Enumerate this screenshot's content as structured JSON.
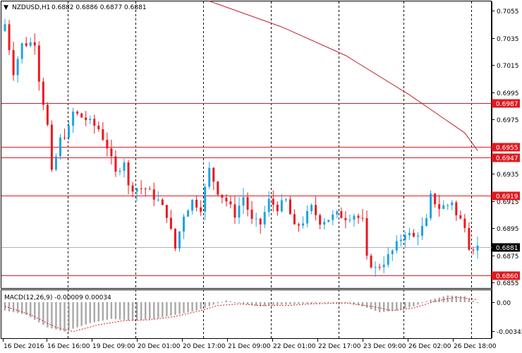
{
  "header": {
    "symbol": "NZDUSD,H1",
    "ohlc": "0.6882 0.6886 0.6877 0.6881"
  },
  "colors": {
    "bull": "#1fa3e0",
    "bear": "#e8191f",
    "level_line": "#e0191f",
    "current_line": "#a9b4c0",
    "ma_line": "#c0202f",
    "grid": "#000000",
    "macd_hist": "#a8a8a8",
    "macd_signal": "#e0191f"
  },
  "chart_data": {
    "type": "candlestick",
    "price_axis": {
      "ticks": [
        "0.7055",
        "0.7035",
        "0.7015",
        "0.6995",
        "0.6975",
        "0.6955",
        "0.6935",
        "0.6915",
        "0.6895",
        "0.6875",
        "0.6855"
      ],
      "range": [
        0.685,
        0.706
      ]
    },
    "time_axis": {
      "ticks": [
        "16 Dec 2016",
        "16 Dec 16:00",
        "19 Dec 09:00",
        "20 Dec 01:00",
        "20 Dec 17:00",
        "21 Dec 09:00",
        "22 Dec 01:00",
        "22 Dec 17:00",
        "23 Dec 09:00",
        "26 Dec 02:00",
        "26 Dec 18:00"
      ]
    },
    "horizontal_levels": [
      {
        "label": "0.6987",
        "value": 0.6987
      },
      {
        "label": "0.6955",
        "value": 0.6955
      },
      {
        "label": "0.6947",
        "value": 0.6947
      },
      {
        "label": "0.6919",
        "value": 0.6919
      },
      {
        "label": "0.6860",
        "value": 0.686
      }
    ],
    "current_price": {
      "label": "0.6881",
      "value": 0.6881
    },
    "moving_average": [
      {
        "bar": 48,
        "value": 0.7062
      },
      {
        "bar": 65,
        "value": 0.7043
      },
      {
        "bar": 80,
        "value": 0.7022
      },
      {
        "bar": 95,
        "value": 0.6993
      },
      {
        "bar": 108,
        "value": 0.6965
      },
      {
        "bar": 111,
        "value": 0.6952
      }
    ],
    "price_path": [
      [
        0,
        0.704
      ],
      [
        1,
        0.7045
      ],
      [
        3,
        0.701
      ],
      [
        5,
        0.703
      ],
      [
        8,
        0.7032
      ],
      [
        9,
        0.7005
      ],
      [
        11,
        0.697
      ],
      [
        12,
        0.6935
      ],
      [
        14,
        0.696
      ],
      [
        16,
        0.6968
      ],
      [
        17,
        0.698
      ],
      [
        20,
        0.6975
      ],
      [
        23,
        0.6968
      ],
      [
        25,
        0.6955
      ],
      [
        27,
        0.6935
      ],
      [
        29,
        0.6945
      ],
      [
        30,
        0.6925
      ],
      [
        34,
        0.6924
      ],
      [
        37,
        0.6915
      ],
      [
        39,
        0.6905
      ],
      [
        41,
        0.688
      ],
      [
        43,
        0.6905
      ],
      [
        45,
        0.6915
      ],
      [
        47,
        0.691
      ],
      [
        49,
        0.6938
      ],
      [
        51,
        0.6922
      ],
      [
        53,
        0.6915
      ],
      [
        55,
        0.6905
      ],
      [
        57,
        0.6918
      ],
      [
        59,
        0.69
      ],
      [
        61,
        0.6898
      ],
      [
        63,
        0.6915
      ],
      [
        65,
        0.691
      ],
      [
        67,
        0.6915
      ],
      [
        69,
        0.6895
      ],
      [
        71,
        0.69
      ],
      [
        73,
        0.691
      ],
      [
        75,
        0.69
      ],
      [
        77,
        0.6902
      ],
      [
        79,
        0.6905
      ],
      [
        81,
        0.6903
      ],
      [
        83,
        0.6905
      ],
      [
        85,
        0.69
      ],
      [
        86,
        0.6872
      ],
      [
        88,
        0.6865
      ],
      [
        90,
        0.687
      ],
      [
        92,
        0.6878
      ],
      [
        95,
        0.6892
      ],
      [
        97,
        0.6888
      ],
      [
        99,
        0.6895
      ],
      [
        100,
        0.69
      ],
      [
        101,
        0.6918
      ],
      [
        103,
        0.691
      ],
      [
        105,
        0.6912
      ],
      [
        106,
        0.6915
      ],
      [
        107,
        0.6904
      ],
      [
        109,
        0.6898
      ],
      [
        110,
        0.6882
      ],
      [
        111,
        0.6881
      ]
    ],
    "macd": {
      "label": "MACD(12,26,9) -0.00009 0.00034",
      "ticks": [
        "0.00",
        "-0.00345"
      ],
      "range": [
        -0.0042,
        0.0012
      ],
      "histogram_path": [
        [
          0,
          -0.001
        ],
        [
          5,
          -0.0015
        ],
        [
          10,
          -0.003
        ],
        [
          14,
          -0.0035
        ],
        [
          20,
          -0.0025
        ],
        [
          25,
          -0.002
        ],
        [
          30,
          -0.0022
        ],
        [
          35,
          -0.002
        ],
        [
          40,
          -0.0015
        ],
        [
          45,
          -0.001
        ],
        [
          49,
          -0.0003
        ],
        [
          52,
          0.0002
        ],
        [
          56,
          -0.0002
        ],
        [
          60,
          -0.0005
        ],
        [
          65,
          -0.0003
        ],
        [
          70,
          -0.0002
        ],
        [
          75,
          -0.0001
        ],
        [
          80,
          0.0
        ],
        [
          84,
          -0.0005
        ],
        [
          88,
          -0.0012
        ],
        [
          92,
          -0.001
        ],
        [
          96,
          -0.0005
        ],
        [
          100,
          0.0003
        ],
        [
          104,
          0.0008
        ],
        [
          108,
          0.0007
        ],
        [
          111,
          -0.0001
        ]
      ],
      "signal_path": [
        [
          0,
          -0.0005
        ],
        [
          6,
          -0.0015
        ],
        [
          12,
          -0.003
        ],
        [
          16,
          -0.0035
        ],
        [
          22,
          -0.0027
        ],
        [
          28,
          -0.0022
        ],
        [
          34,
          -0.0021
        ],
        [
          40,
          -0.0017
        ],
        [
          46,
          -0.001
        ],
        [
          50,
          -0.0004
        ],
        [
          55,
          -0.0002
        ],
        [
          60,
          -0.0004
        ],
        [
          66,
          -0.0004
        ],
        [
          72,
          -0.0002
        ],
        [
          80,
          -0.0001
        ],
        [
          86,
          -0.0005
        ],
        [
          91,
          -0.001
        ],
        [
          96,
          -0.0007
        ],
        [
          101,
          0.0001
        ],
        [
          106,
          0.0006
        ],
        [
          111,
          0.0003
        ]
      ]
    }
  }
}
